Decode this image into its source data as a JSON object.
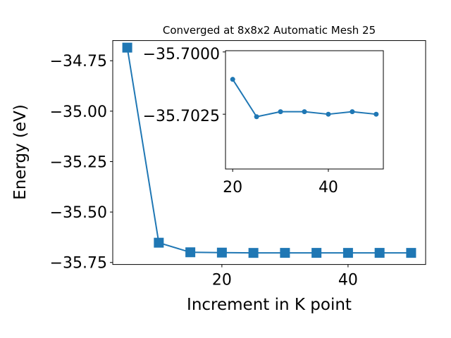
{
  "colors": {
    "series": "#1f77b4",
    "axis": "#000000",
    "background": "#ffffff"
  },
  "chart_data": [
    {
      "type": "line",
      "title": "Converged at 8x8x2 Automatic Mesh 25",
      "xlabel": "Increment in K point",
      "ylabel": "Energy (eV)",
      "marker": "square",
      "xlim": [
        2.7,
        52.3
      ],
      "ylim": [
        -35.76,
        -34.65
      ],
      "xticks": [
        20,
        40
      ],
      "xtick_labels": [
        "20",
        "40"
      ],
      "yticks": [
        -34.75,
        -35.0,
        -35.25,
        -35.5,
        -35.75
      ],
      "ytick_labels": [
        "−34.75",
        "−35.00",
        "−35.25",
        "−35.50",
        "−35.75"
      ],
      "grid": false,
      "legend": "none",
      "series": [
        {
          "x": [
            5,
            10,
            15,
            20,
            25,
            30,
            35,
            40,
            45,
            50
          ],
          "y": [
            -34.685,
            -35.652,
            -35.6995,
            -35.7011,
            -35.7026,
            -35.7024,
            -35.7024,
            -35.7025,
            -35.7024,
            -35.7025
          ]
        }
      ]
    },
    {
      "type": "line",
      "title": "",
      "placement": "inset top-right",
      "marker": "circle",
      "xlim": [
        18.5,
        51.5
      ],
      "ylim": [
        -35.7047,
        -35.69995
      ],
      "xticks": [
        20,
        40
      ],
      "xtick_labels": [
        "20",
        "40"
      ],
      "yticks": [
        -35.7025,
        -35.7
      ],
      "ytick_labels": [
        "−35.7025",
        "−35.7000"
      ],
      "grid": false,
      "series": [
        {
          "x": [
            20,
            25,
            30,
            35,
            40,
            45,
            50
          ],
          "y": [
            -35.7011,
            -35.7026,
            -35.7024,
            -35.7024,
            -35.7025,
            -35.7024,
            -35.7025
          ]
        }
      ]
    }
  ]
}
